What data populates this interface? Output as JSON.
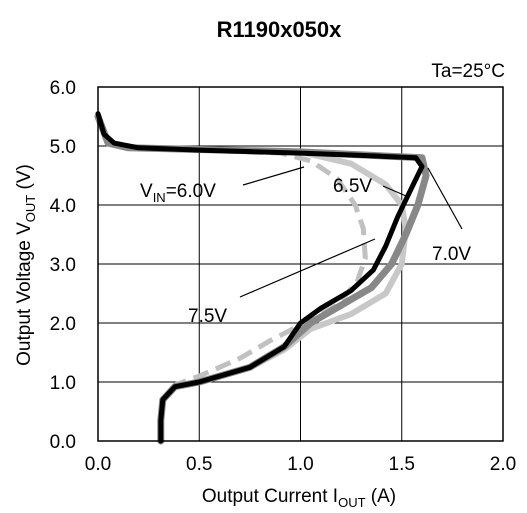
{
  "chart_data": {
    "type": "line",
    "title": "R1190x050x",
    "annotation": "Ta=25°C",
    "xlabel": {
      "main": "Output Current I",
      "sub": "OUT",
      "unit": " (A)"
    },
    "ylabel": {
      "main": "Output  Voltage V",
      "sub": "OUT",
      "unit": " (V)"
    },
    "xlim": [
      0,
      2.0
    ],
    "ylim": [
      0,
      6.0
    ],
    "xticks": [
      "0.0",
      "0.5",
      "1.0",
      "1.5",
      "2.0"
    ],
    "yticks": [
      "0.0",
      "1.0",
      "2.0",
      "3.0",
      "4.0",
      "5.0",
      "6.0"
    ],
    "xtick_values": [
      0,
      0.5,
      1.0,
      1.5,
      2.0
    ],
    "ytick_values": [
      0,
      1,
      2,
      3,
      4,
      5,
      6
    ],
    "grid": true,
    "series": [
      {
        "name": "V_IN=6.0V",
        "label": {
          "prefix": "V",
          "sub": "IN",
          "suffix": "=6.0V"
        },
        "color": "#c0c0c0",
        "dashed": true,
        "points": [
          [
            0.0,
            5.5
          ],
          [
            0.05,
            5.05
          ],
          [
            0.15,
            4.97
          ],
          [
            0.5,
            4.93
          ],
          [
            0.9,
            4.88
          ],
          [
            1.05,
            4.75
          ],
          [
            1.18,
            4.45
          ],
          [
            1.27,
            4.0
          ],
          [
            1.31,
            3.6
          ],
          [
            1.32,
            3.1
          ],
          [
            1.28,
            2.7
          ],
          [
            1.18,
            2.3
          ],
          [
            1.02,
            2.0
          ],
          [
            0.85,
            1.7
          ],
          [
            0.7,
            1.4
          ],
          [
            0.5,
            1.1
          ],
          [
            0.38,
            0.95
          ],
          [
            0.32,
            0.7
          ],
          [
            0.31,
            0.35
          ],
          [
            0.31,
            0.0
          ]
        ]
      },
      {
        "name": "6.5V",
        "label": {
          "prefix": "6.5V",
          "sub": "",
          "suffix": ""
        },
        "color": "#c8c8c8",
        "dashed": false,
        "points": [
          [
            0.0,
            5.5
          ],
          [
            0.05,
            5.05
          ],
          [
            0.15,
            4.97
          ],
          [
            0.5,
            4.94
          ],
          [
            1.0,
            4.9
          ],
          [
            1.25,
            4.7
          ],
          [
            1.42,
            4.35
          ],
          [
            1.5,
            4.0
          ],
          [
            1.52,
            3.6
          ],
          [
            1.5,
            3.0
          ],
          [
            1.42,
            2.5
          ],
          [
            1.25,
            2.15
          ],
          [
            1.05,
            1.9
          ],
          [
            0.92,
            1.55
          ],
          [
            0.75,
            1.25
          ],
          [
            0.5,
            1.0
          ],
          [
            0.38,
            0.92
          ],
          [
            0.32,
            0.7
          ],
          [
            0.31,
            0.35
          ],
          [
            0.31,
            0.0
          ]
        ]
      },
      {
        "name": "7.0V",
        "label": {
          "prefix": "7.0V",
          "sub": "",
          "suffix": ""
        },
        "color": "#888888",
        "dashed": false,
        "points": [
          [
            0.0,
            5.5
          ],
          [
            0.05,
            5.05
          ],
          [
            0.15,
            4.97
          ],
          [
            0.5,
            4.94
          ],
          [
            1.0,
            4.9
          ],
          [
            1.3,
            4.85
          ],
          [
            1.6,
            4.8
          ],
          [
            1.62,
            4.5
          ],
          [
            1.58,
            4.0
          ],
          [
            1.52,
            3.5
          ],
          [
            1.45,
            3.0
          ],
          [
            1.35,
            2.6
          ],
          [
            1.2,
            2.3
          ],
          [
            1.05,
            2.0
          ],
          [
            0.92,
            1.6
          ],
          [
            0.75,
            1.25
          ],
          [
            0.5,
            1.0
          ],
          [
            0.38,
            0.92
          ],
          [
            0.32,
            0.7
          ],
          [
            0.31,
            0.35
          ],
          [
            0.31,
            0.0
          ]
        ]
      },
      {
        "name": "7.5V",
        "label": {
          "prefix": "7.5V",
          "sub": "",
          "suffix": ""
        },
        "color": "#000000",
        "dashed": false,
        "points": [
          [
            0.0,
            5.55
          ],
          [
            0.03,
            5.2
          ],
          [
            0.08,
            5.05
          ],
          [
            0.2,
            4.97
          ],
          [
            0.5,
            4.93
          ],
          [
            1.0,
            4.88
          ],
          [
            1.3,
            4.84
          ],
          [
            1.57,
            4.8
          ],
          [
            1.6,
            4.65
          ],
          [
            1.55,
            4.3
          ],
          [
            1.48,
            3.8
          ],
          [
            1.42,
            3.3
          ],
          [
            1.36,
            2.9
          ],
          [
            1.25,
            2.55
          ],
          [
            1.1,
            2.25
          ],
          [
            1.0,
            2.0
          ],
          [
            0.92,
            1.6
          ],
          [
            0.75,
            1.25
          ],
          [
            0.5,
            1.0
          ],
          [
            0.38,
            0.92
          ],
          [
            0.32,
            0.7
          ],
          [
            0.31,
            0.35
          ],
          [
            0.31,
            0.0
          ]
        ]
      }
    ]
  }
}
